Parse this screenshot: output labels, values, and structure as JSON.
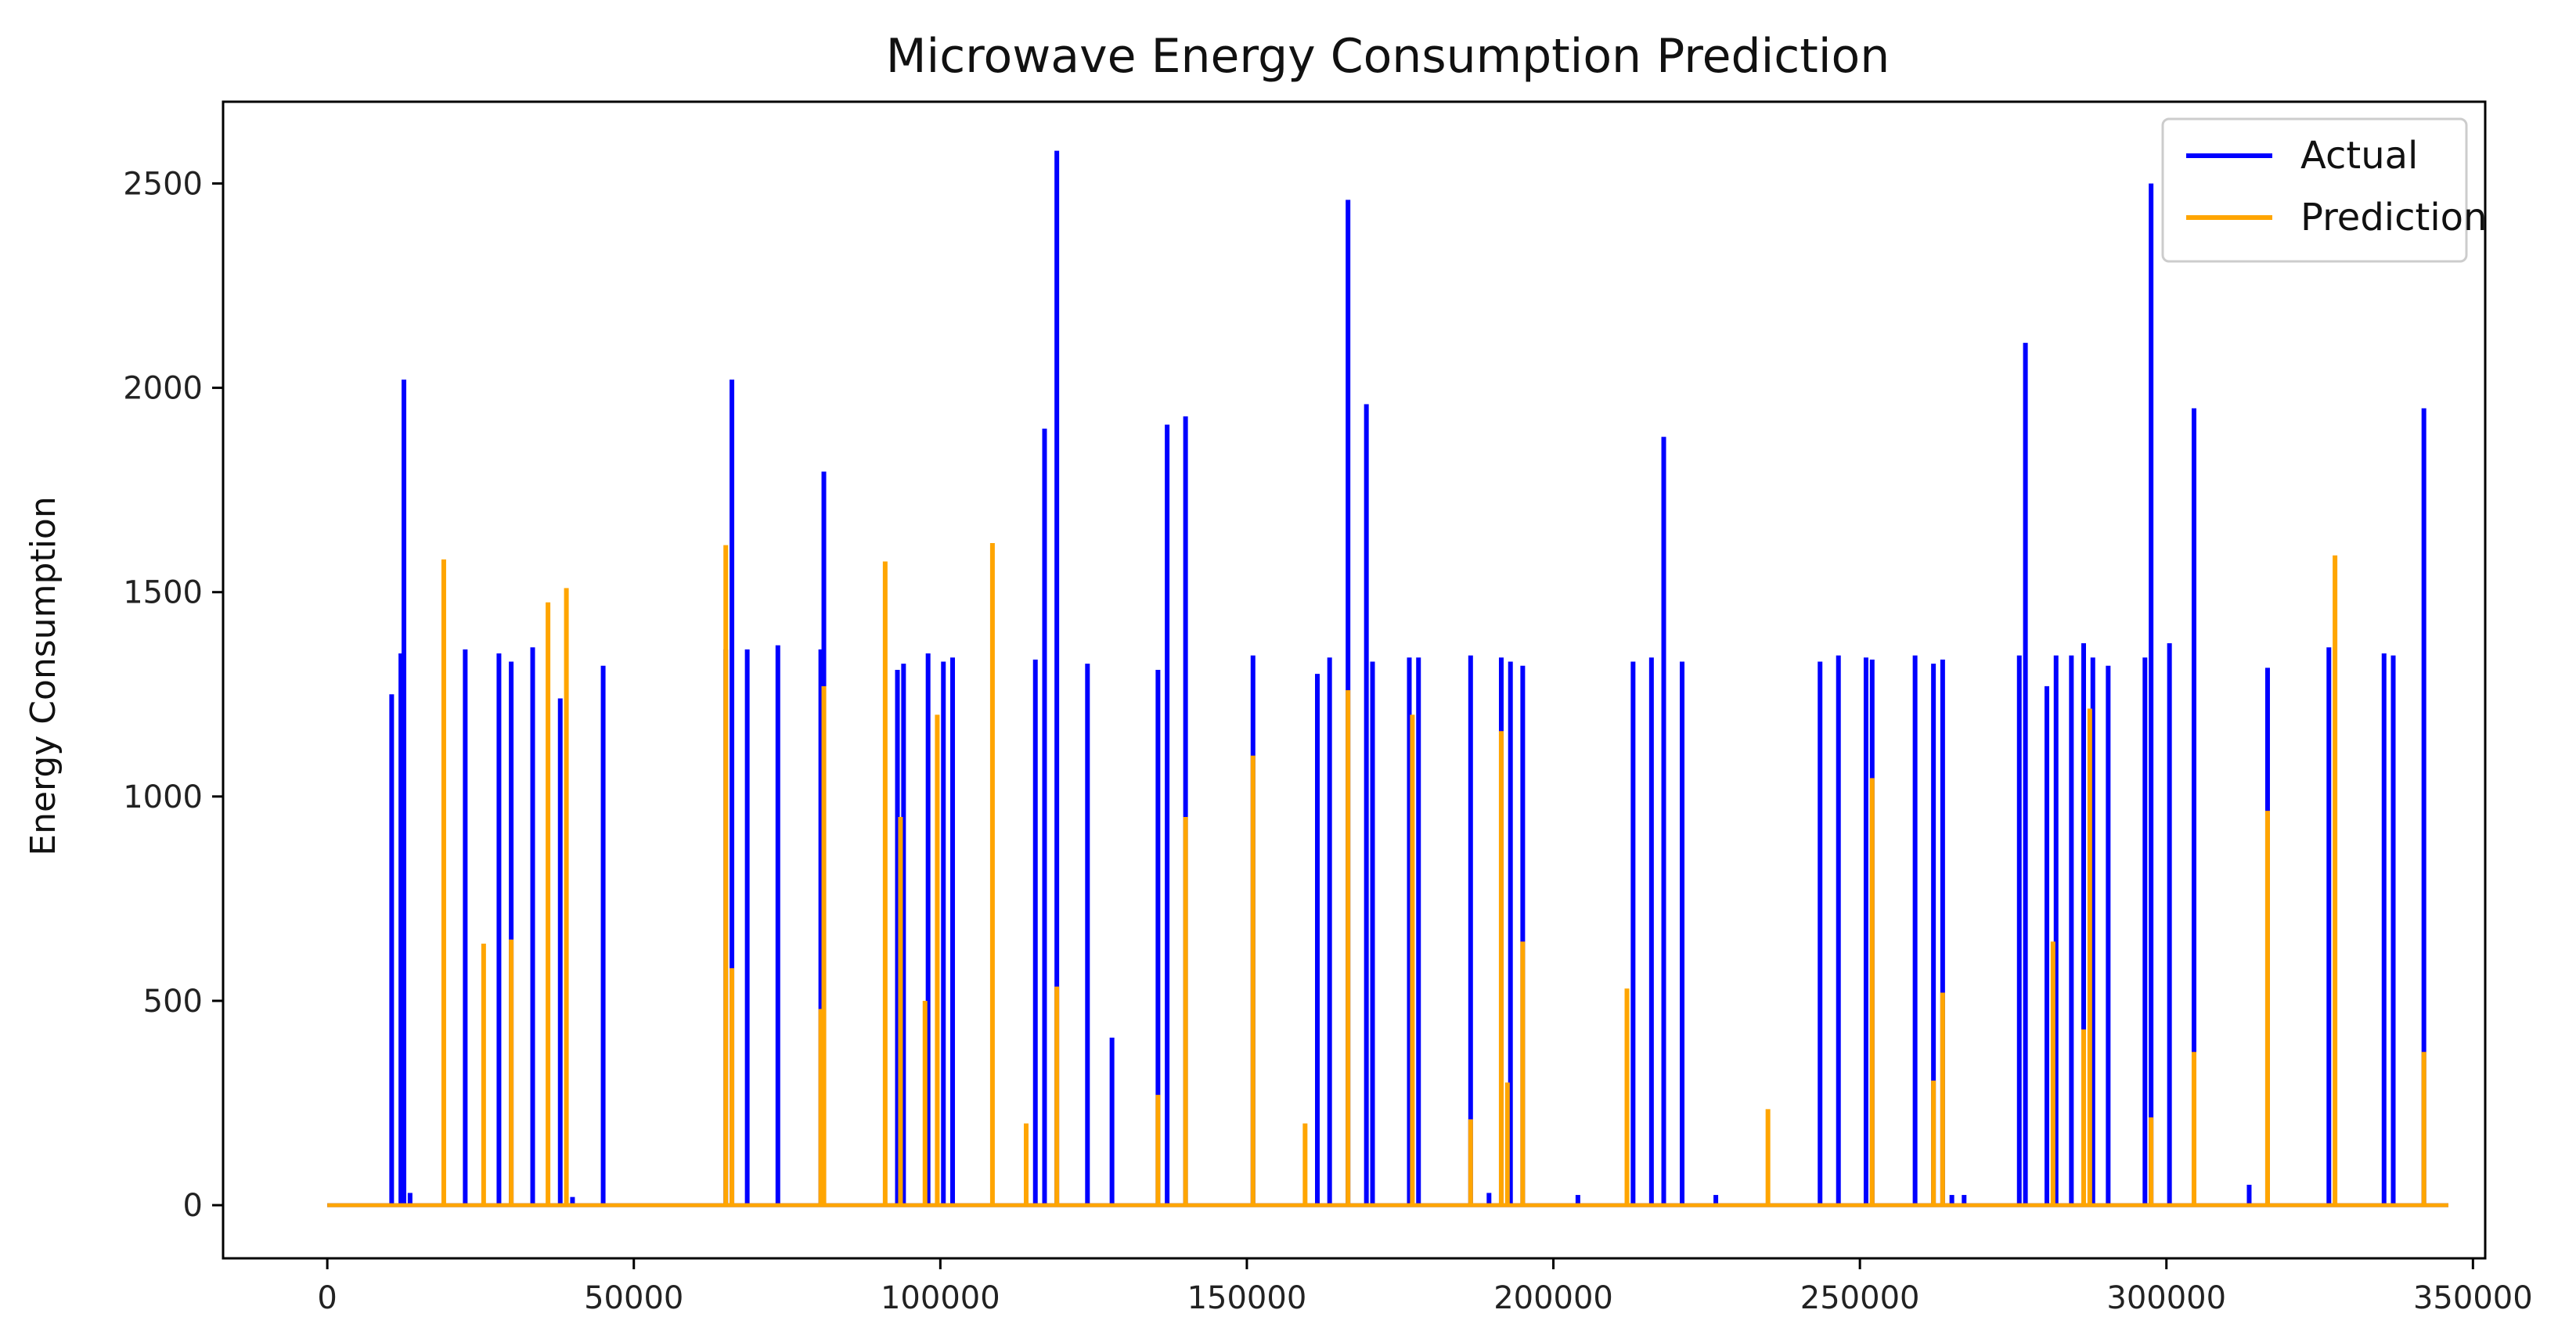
{
  "chart_data": {
    "type": "line",
    "title": "Microwave Energy Consumption Prediction",
    "xlabel": "",
    "ylabel": "Energy Consumption",
    "xlim": [
      -17000,
      352000
    ],
    "ylim": [
      -130,
      2700
    ],
    "xticks": [
      0,
      50000,
      100000,
      150000,
      200000,
      250000,
      300000,
      350000
    ],
    "yticks": [
      0,
      500,
      1000,
      1500,
      2000,
      2500
    ],
    "x_range": [
      0,
      346000
    ],
    "legend_position": "top-right",
    "grid": false,
    "series": [
      {
        "name": "Actual",
        "color": "#0000ff",
        "spikes": [
          [
            10500,
            1250
          ],
          [
            12500,
            2020
          ],
          [
            12000,
            1350
          ],
          [
            13500,
            30
          ],
          [
            22500,
            1360
          ],
          [
            28000,
            1350
          ],
          [
            30000,
            1330
          ],
          [
            33500,
            1365
          ],
          [
            38000,
            1240
          ],
          [
            40000,
            20
          ],
          [
            45000,
            1320
          ],
          [
            65000,
            1360
          ],
          [
            66000,
            2020
          ],
          [
            68500,
            1360
          ],
          [
            73500,
            1370
          ],
          [
            80500,
            1360
          ],
          [
            81000,
            1795
          ],
          [
            93000,
            1310
          ],
          [
            94000,
            1325
          ],
          [
            98000,
            1350
          ],
          [
            100500,
            1330
          ],
          [
            102000,
            1340
          ],
          [
            115500,
            1335
          ],
          [
            117000,
            1900
          ],
          [
            119000,
            2580
          ],
          [
            124000,
            1325
          ],
          [
            128000,
            410
          ],
          [
            135500,
            1310
          ],
          [
            137000,
            1910
          ],
          [
            140000,
            1930
          ],
          [
            151000,
            1345
          ],
          [
            161500,
            1300
          ],
          [
            163500,
            1340
          ],
          [
            166500,
            2460
          ],
          [
            169500,
            1960
          ],
          [
            170500,
            1330
          ],
          [
            176500,
            1340
          ],
          [
            178000,
            1340
          ],
          [
            186500,
            1345
          ],
          [
            189500,
            30
          ],
          [
            191500,
            1340
          ],
          [
            193000,
            1330
          ],
          [
            195000,
            1320
          ],
          [
            204000,
            25
          ],
          [
            213000,
            1330
          ],
          [
            216000,
            1340
          ],
          [
            218000,
            1880
          ],
          [
            221000,
            1330
          ],
          [
            226500,
            25
          ],
          [
            243500,
            1330
          ],
          [
            246500,
            1345
          ],
          [
            251000,
            1340
          ],
          [
            252000,
            1335
          ],
          [
            259000,
            1345
          ],
          [
            262000,
            1325
          ],
          [
            263500,
            1335
          ],
          [
            265000,
            25
          ],
          [
            267000,
            25
          ],
          [
            276000,
            1345
          ],
          [
            277000,
            2110
          ],
          [
            280500,
            1270
          ],
          [
            282000,
            1345
          ],
          [
            284500,
            1345
          ],
          [
            286500,
            1375
          ],
          [
            288000,
            1340
          ],
          [
            290500,
            1320
          ],
          [
            296500,
            1340
          ],
          [
            297500,
            2500
          ],
          [
            300500,
            1375
          ],
          [
            304500,
            1950
          ],
          [
            313500,
            50
          ],
          [
            316500,
            1315
          ],
          [
            326500,
            1365
          ],
          [
            335500,
            1350
          ],
          [
            337000,
            1345
          ],
          [
            342000,
            1950
          ]
        ]
      },
      {
        "name": "Prediction",
        "color": "#ffa500",
        "spikes": [
          [
            19000,
            1580
          ],
          [
            25500,
            640
          ],
          [
            30000,
            650
          ],
          [
            36000,
            1475
          ],
          [
            39000,
            1510
          ],
          [
            65000,
            1615
          ],
          [
            66000,
            580
          ],
          [
            80500,
            480
          ],
          [
            81000,
            1270
          ],
          [
            91000,
            1575
          ],
          [
            93500,
            950
          ],
          [
            97500,
            500
          ],
          [
            99500,
            1200
          ],
          [
            108500,
            1620
          ],
          [
            114000,
            200
          ],
          [
            119000,
            535
          ],
          [
            135500,
            270
          ],
          [
            140000,
            950
          ],
          [
            151000,
            1100
          ],
          [
            159500,
            200
          ],
          [
            166500,
            1260
          ],
          [
            177000,
            1200
          ],
          [
            186500,
            210
          ],
          [
            191500,
            1160
          ],
          [
            192500,
            300
          ],
          [
            195000,
            645
          ],
          [
            212000,
            530
          ],
          [
            235000,
            235
          ],
          [
            252000,
            1045
          ],
          [
            262000,
            305
          ],
          [
            263500,
            520
          ],
          [
            281500,
            645
          ],
          [
            286500,
            430
          ],
          [
            287500,
            1215
          ],
          [
            297500,
            215
          ],
          [
            304500,
            375
          ],
          [
            316500,
            965
          ],
          [
            327500,
            1590
          ],
          [
            342000,
            375
          ]
        ]
      }
    ]
  }
}
